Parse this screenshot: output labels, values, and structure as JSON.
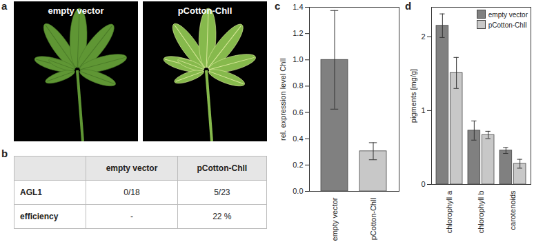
{
  "photos": {
    "panel_label": "a",
    "images": [
      {
        "caption": "empty vector"
      },
      {
        "caption": "pCotton-ChlI"
      }
    ]
  },
  "table": {
    "panel_label": "b",
    "rows": [
      [
        null,
        "empty vector",
        "pCotton-ChlI"
      ],
      [
        "AGL1",
        "0/18",
        "5/23"
      ],
      [
        "efficiency",
        "-",
        "22 %"
      ]
    ]
  },
  "chart_data": [
    {
      "panel_label": "c",
      "type": "bar",
      "categories": [
        "empty vector",
        "pCotton-ChlI"
      ],
      "values": [
        1.0,
        0.305
      ],
      "errors": [
        0.375,
        0.065
      ],
      "colors": [
        "#808080",
        "#c8c8c8"
      ],
      "ylabel": "rel. expression level ChlI",
      "ylim": [
        0,
        1.4
      ],
      "yticks": [
        {
          "value": 0,
          "label": "0.0"
        },
        0.2,
        0.4,
        0.6,
        0.8,
        {
          "value": 1,
          "label": "1.0"
        },
        1.2,
        1.4
      ]
    },
    {
      "panel_label": "d",
      "type": "bar",
      "categories": [
        "chlorophyll a",
        "chlorophyll b",
        "carotenoids"
      ],
      "series": [
        {
          "name": "empty vector",
          "color": "#808080",
          "values": [
            2.15,
            0.73,
            0.46
          ],
          "errors": [
            0.16,
            0.13,
            0.04
          ]
        },
        {
          "name": "pCotton-ChlI",
          "color": "#c8c8c8",
          "values": [
            1.51,
            0.67,
            0.28
          ],
          "errors": [
            0.21,
            0.05,
            0.06
          ]
        }
      ],
      "ylabel": "pigments [mg/g]",
      "ylim": [
        0,
        2.4
      ],
      "yticks": [
        0,
        1,
        2
      ],
      "legend": "top-right"
    }
  ]
}
